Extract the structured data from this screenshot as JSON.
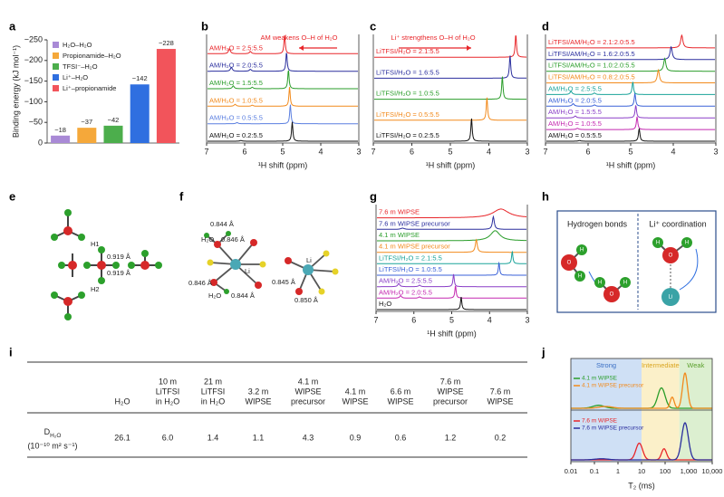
{
  "panel_letters": [
    "a",
    "b",
    "c",
    "d",
    "e",
    "f",
    "g",
    "h",
    "i",
    "j"
  ],
  "chart_data": [
    {
      "type": "bar",
      "ylabel": "Binding energy (kJ mol⁻¹)",
      "categories": [
        "H₂O–H₂O",
        "Propionamide–H₂O",
        "TFSI⁻–H₂O",
        "Li⁺–H₂O",
        "Li⁺–propionamide"
      ],
      "values": [
        -18,
        -37,
        -42,
        -142,
        -228
      ],
      "value_labels": [
        "−18",
        "−37",
        "−42",
        "−142",
        "−228"
      ],
      "colors": [
        "#a98ad6",
        "#f5a83a",
        "#4cae4c",
        "#2f6fe0",
        "#f2545b"
      ],
      "ylim": [
        0,
        -250
      ],
      "yticks": [
        0,
        {
          "value": -50,
          "label": "−50"
        },
        {
          "value": -100,
          "label": "−100"
        },
        {
          "value": -150,
          "label": "−150"
        },
        {
          "value": -200,
          "label": "−200"
        },
        {
          "value": -250,
          "label": "−250"
        }
      ]
    },
    {
      "type": "spectra",
      "xlabel": "¹H shift (ppm)",
      "xlim": [
        7,
        3
      ],
      "xticks": [
        7,
        6,
        5,
        4,
        3
      ],
      "annotation": "AM weakens O–H of H₂O",
      "series": [
        {
          "name": "AM/H₂O = 2.5:5.5",
          "color": "#e8262a",
          "peak_x": [
            6.4,
            5.85,
            4.95
          ],
          "peak_height": [
            0.25,
            0.12,
            1.0
          ],
          "peak_width": [
            0.03,
            0.03,
            0.02
          ]
        },
        {
          "name": "AM/H₂O = 2.0:5.5",
          "color": "#2b2f9e",
          "peak_x": [
            6.35,
            5.85,
            4.9
          ],
          "peak_height": [
            0.2,
            0.1,
            1.0
          ],
          "peak_width": [
            0.03,
            0.03,
            0.02
          ]
        },
        {
          "name": "AM/H₂O = 1.5:5.5",
          "color": "#2a9d2a",
          "peak_x": [
            6.3,
            5.8,
            4.85
          ],
          "peak_height": [
            0.15,
            0.08,
            1.0
          ],
          "peak_width": [
            0.03,
            0.03,
            0.02
          ]
        },
        {
          "name": "AM/H₂O = 1.0:5.5",
          "color": "#f28a1c",
          "peak_x": [
            6.25,
            5.8,
            4.82
          ],
          "peak_height": [
            0.1,
            0.05,
            1.0
          ],
          "peak_width": [
            0.03,
            0.03,
            0.02
          ]
        },
        {
          "name": "AM/H₂O = 0.5:5.5",
          "color": "#5b7fe0",
          "peak_x": [
            6.2,
            4.8
          ],
          "peak_height": [
            0.06,
            1.0
          ],
          "peak_width": [
            0.03,
            0.02
          ]
        },
        {
          "name": "AM/H₂O = 0.2:5.5",
          "color": "#111111",
          "peak_x": [
            6.1,
            4.75
          ],
          "peak_height": [
            0.04,
            1.0
          ],
          "peak_width": [
            0.03,
            0.02
          ]
        }
      ]
    },
    {
      "type": "spectra",
      "xlabel": "¹H shift (ppm)",
      "xlim": [
        7,
        3
      ],
      "xticks": [
        7,
        6,
        5,
        4,
        3
      ],
      "annotation": "Li⁺ strengthens O–H of H₂O",
      "series": [
        {
          "name": "LiTFSI/H₂O = 2.1:5.5",
          "color": "#e8262a",
          "peak_x": [
            3.3
          ],
          "peak_height": [
            1.0
          ],
          "peak_width": [
            0.02
          ]
        },
        {
          "name": "LiTFSI/H₂O = 1.6:5.5",
          "color": "#2b2f9e",
          "peak_x": [
            3.45
          ],
          "peak_height": [
            1.0
          ],
          "peak_width": [
            0.02
          ]
        },
        {
          "name": "LiTFSI/H₂O = 1.0:5.5",
          "color": "#2a9d2a",
          "peak_x": [
            3.65
          ],
          "peak_height": [
            1.0
          ],
          "peak_width": [
            0.02
          ]
        },
        {
          "name": "LiTFSI/H₂O = 0.5:5.5",
          "color": "#f28a1c",
          "peak_x": [
            4.05
          ],
          "peak_height": [
            1.0
          ],
          "peak_width": [
            0.02
          ]
        },
        {
          "name": "LiTFSI/H₂O = 0.2:5.5",
          "color": "#111111",
          "peak_x": [
            4.45
          ],
          "peak_height": [
            1.0
          ],
          "peak_width": [
            0.02
          ]
        }
      ]
    },
    {
      "type": "spectra",
      "xlabel": "¹H shift (ppm)",
      "xlim": [
        7,
        3
      ],
      "xticks": [
        7,
        6,
        5,
        4,
        3
      ],
      "series": [
        {
          "name": "LiTFSI/AM/H₂O = 2.1:2.0:5.5",
          "color": "#e8262a",
          "peak_x": [
            3.8
          ],
          "peak_height": [
            1.0
          ],
          "peak_width": [
            0.03
          ]
        },
        {
          "name": "LiTFSI/AM/H₂O = 1.6:2.0:5.5",
          "color": "#2b2f9e",
          "peak_x": [
            4.05
          ],
          "peak_height": [
            1.0
          ],
          "peak_width": [
            0.03
          ]
        },
        {
          "name": "LiTFSI/AM/H₂O = 1.0:2.0:5.5",
          "color": "#2a9d2a",
          "peak_x": [
            4.2
          ],
          "peak_height": [
            1.0
          ],
          "peak_width": [
            0.03
          ]
        },
        {
          "name": "LiTFSI/AM/H₂O = 0.8:2.0:5.5",
          "color": "#f28a1c",
          "peak_x": [
            4.35
          ],
          "peak_height": [
            1.0
          ],
          "peak_width": [
            0.03
          ]
        },
        {
          "name": "AM/H₂O = 2.5:5.5",
          "color": "#1aa39a",
          "peak_x": [
            6.4,
            5.85,
            4.95
          ],
          "peak_height": [
            0.25,
            0.12,
            1.0
          ],
          "peak_width": [
            0.03,
            0.03,
            0.02
          ]
        },
        {
          "name": "AM/H₂O = 2.0:5.5",
          "color": "#3a62d8",
          "peak_x": [
            6.35,
            5.85,
            4.9
          ],
          "peak_height": [
            0.2,
            0.1,
            1.0
          ],
          "peak_width": [
            0.03,
            0.03,
            0.02
          ]
        },
        {
          "name": "AM/H₂O = 1.5:5.5",
          "color": "#8a3fc7",
          "peak_x": [
            6.3,
            4.88
          ],
          "peak_height": [
            0.15,
            1.0
          ],
          "peak_width": [
            0.03,
            0.02
          ]
        },
        {
          "name": "AM/H₂O = 1.0:5.5",
          "color": "#c428b0",
          "peak_x": [
            6.25,
            4.85
          ],
          "peak_height": [
            0.1,
            1.0
          ],
          "peak_width": [
            0.03,
            0.02
          ]
        },
        {
          "name": "AM/H₂O = 0.5:5.5",
          "color": "#111111",
          "peak_x": [
            6.2,
            4.8
          ],
          "peak_height": [
            0.06,
            1.0
          ],
          "peak_width": [
            0.03,
            0.02
          ]
        }
      ]
    },
    {
      "type": "spectra",
      "xlabel": "¹H shift (ppm)",
      "xlim": [
        7,
        3
      ],
      "xticks": [
        7,
        6,
        5,
        4,
        3
      ],
      "series": [
        {
          "name": "7.6 m WIPSE",
          "color": "#e8262a",
          "peak_x": [
            3.7
          ],
          "peak_height": [
            0.7
          ],
          "peak_width": [
            0.25
          ]
        },
        {
          "name": "7.6 m WIPSE precursor",
          "color": "#2b2f9e",
          "peak_x": [
            6.3,
            3.9
          ],
          "peak_height": [
            0.1,
            1.0
          ],
          "peak_width": [
            0.05,
            0.03
          ]
        },
        {
          "name": "4.1 m WIPSE",
          "color": "#2a9d2a",
          "peak_x": [
            3.85
          ],
          "peak_height": [
            0.8
          ],
          "peak_width": [
            0.15
          ]
        },
        {
          "name": "4.1 m WIPSE precursor",
          "color": "#f28a1c",
          "peak_x": [
            4.35
          ],
          "peak_height": [
            1.0
          ],
          "peak_width": [
            0.03
          ]
        },
        {
          "name": "LiTFSI/H₂O = 2.1:5.5",
          "color": "#1aa39a",
          "peak_x": [
            3.4
          ],
          "peak_height": [
            1.0
          ],
          "peak_width": [
            0.02
          ]
        },
        {
          "name": "LiTFSI/H₂O = 1.0:5.5",
          "color": "#3a62d8",
          "peak_x": [
            3.75
          ],
          "peak_height": [
            1.0
          ],
          "peak_width": [
            0.02
          ]
        },
        {
          "name": "AM/H₂O = 2.5:5.5",
          "color": "#8a3fc7",
          "peak_x": [
            6.4,
            5.85,
            4.95
          ],
          "peak_height": [
            0.25,
            0.12,
            1.0
          ],
          "peak_width": [
            0.03,
            0.03,
            0.02
          ]
        },
        {
          "name": "AM/H₂O = 2.0:5.5",
          "color": "#c428b0",
          "peak_x": [
            6.35,
            5.85,
            4.9
          ],
          "peak_height": [
            0.2,
            0.1,
            1.0
          ],
          "peak_width": [
            0.03,
            0.03,
            0.02
          ]
        },
        {
          "name": "H₂O",
          "color": "#111111",
          "peak_x": [
            4.75
          ],
          "peak_height": [
            1.0
          ],
          "peak_width": [
            0.02
          ]
        }
      ]
    },
    {
      "type": "relaxation",
      "xlabel": "T₂ (ms)",
      "log_x": true,
      "xlim": [
        0.01,
        10000
      ],
      "xticks": [
        0.01,
        0.1,
        1,
        10,
        100,
        {
          "value": 1000,
          "label": "1,000"
        },
        {
          "value": 10000,
          "label": "10,000"
        }
      ],
      "regions": [
        {
          "label": "Strong",
          "from": 0.01,
          "to": 10,
          "color": "#cfe0f5",
          "text_color": "#3a6fc4"
        },
        {
          "label": "Intermediate",
          "from": 10,
          "to": 400,
          "color": "#fbf0c9",
          "text_color": "#d9a520"
        },
        {
          "label": "Weak",
          "from": 400,
          "to": 10000,
          "color": "#dcefd0",
          "text_color": "#5aa02c"
        }
      ],
      "panels": [
        {
          "series": [
            {
              "name": "4.1 m WIPSE",
              "color": "#2a9d2a",
              "peak_x": [
                0.15,
                70
              ],
              "peak_height": [
                0.08,
                0.55
              ],
              "peak_width": [
                0.35,
                0.22
              ]
            },
            {
              "name": "4.1 m WIPSE precursor",
              "color": "#f28a1c",
              "peak_x": [
                0.3,
                200,
                700
              ],
              "peak_height": [
                0.05,
                0.3,
                0.95
              ],
              "peak_width": [
                0.4,
                0.12,
                0.15
              ]
            }
          ]
        },
        {
          "series": [
            {
              "name": "7.6 m WIPSE",
              "color": "#e8262a",
              "peak_x": [
                8,
                90
              ],
              "peak_height": [
                0.45,
                0.3
              ],
              "peak_width": [
                0.2,
                0.15
              ]
            },
            {
              "name": "7.6 m WIPSE precursor",
              "color": "#2b2f9e",
              "peak_x": [
                0.2,
                700
              ],
              "peak_height": [
                0.03,
                1.0
              ],
              "peak_width": [
                0.4,
                0.2
              ]
            }
          ]
        }
      ]
    }
  ],
  "diagrams": {
    "e": {
      "labels": [
        "H1",
        "0.919 Å",
        "0.919 Å",
        "H2"
      ]
    },
    "f": {
      "labels": [
        "0.844 Å",
        "H₂O",
        "0.846 Å",
        "Li",
        "0.846 Å",
        "H₂O",
        "0.844 Å",
        "Li",
        "0.845 Å",
        "0.850 Å"
      ]
    },
    "h": {
      "titles": [
        "Hydrogen bonds",
        "Li⁺ coordination"
      ],
      "atoms": [
        "O",
        "H",
        "H",
        "O",
        "H",
        "H",
        "O",
        "H",
        "H",
        "Li"
      ]
    }
  },
  "table": {
    "columns": [
      [
        "H₂O"
      ],
      [
        "10 m",
        "LiTFSI",
        "in H₂O"
      ],
      [
        "21 m",
        "LiTFSI",
        "in H₂O"
      ],
      [
        "3.2 m",
        "WIPSE"
      ],
      [
        "4.1 m",
        "WIPSE",
        "precursor"
      ],
      [
        "4.1 m",
        "WIPSE"
      ],
      [
        "6.6 m",
        "WIPSE"
      ],
      [
        "7.6 m",
        "WIPSE",
        "precursor"
      ],
      [
        "7.6 m",
        "WIPSE"
      ]
    ],
    "rows": [
      {
        "symbol": "D",
        "subscript": "H₂O",
        "unit": "(10⁻¹⁰ m² s⁻¹)",
        "cells": [
          "26.1",
          "6.0",
          "1.4",
          "1.1",
          "4.3",
          "0.9",
          "0.6",
          "1.2",
          "0.2"
        ]
      }
    ]
  }
}
